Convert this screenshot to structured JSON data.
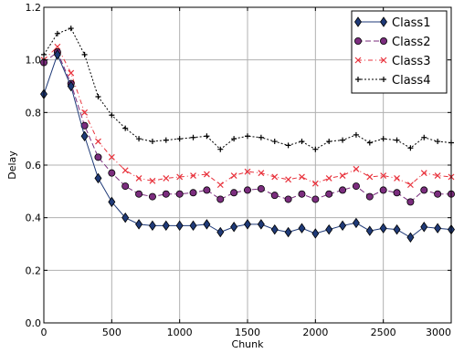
{
  "chart_data": {
    "type": "line",
    "xlabel": "Chunk",
    "ylabel": "Delay",
    "xlim": [
      0,
      3000
    ],
    "ylim": [
      0.0,
      1.2
    ],
    "x_ticks": [
      0,
      500,
      1000,
      1500,
      2000,
      2500,
      3000
    ],
    "y_ticks": [
      0.0,
      0.2,
      0.4,
      0.6,
      0.8,
      1.0,
      1.2
    ],
    "x_tick_labels": [
      "0",
      "500",
      "1000",
      "1500",
      "2000",
      "2500",
      "3000"
    ],
    "y_tick_labels": [
      "0.0",
      "0.2",
      "0.4",
      "0.6",
      "0.8",
      "1.0",
      "1.2"
    ],
    "grid": true,
    "legend_position": "top-right",
    "x": [
      0,
      100,
      200,
      300,
      400,
      500,
      600,
      700,
      800,
      900,
      1000,
      1100,
      1200,
      1300,
      1400,
      1500,
      1600,
      1700,
      1800,
      1900,
      2000,
      2100,
      2200,
      2300,
      2400,
      2500,
      2600,
      2700,
      2800,
      2900,
      3000
    ],
    "series": [
      {
        "name": "Class1",
        "color": "#1f3a78",
        "marker": "diamond",
        "line": "solid",
        "values": [
          0.87,
          1.02,
          0.9,
          0.71,
          0.55,
          0.46,
          0.4,
          0.375,
          0.37,
          0.37,
          0.37,
          0.37,
          0.375,
          0.345,
          0.365,
          0.375,
          0.375,
          0.355,
          0.345,
          0.36,
          0.34,
          0.355,
          0.37,
          0.38,
          0.35,
          0.36,
          0.355,
          0.325,
          0.365,
          0.36,
          0.355
        ]
      },
      {
        "name": "Class2",
        "color": "#7b2d7e",
        "marker": "circle",
        "line": "dashed",
        "values": [
          0.99,
          1.03,
          0.91,
          0.75,
          0.63,
          0.57,
          0.52,
          0.49,
          0.48,
          0.49,
          0.49,
          0.495,
          0.505,
          0.47,
          0.495,
          0.505,
          0.51,
          0.485,
          0.47,
          0.49,
          0.47,
          0.49,
          0.505,
          0.52,
          0.48,
          0.505,
          0.495,
          0.46,
          0.505,
          0.49,
          0.49
        ]
      },
      {
        "name": "Class3",
        "color": "#e8323c",
        "marker": "x",
        "line": "dashdot",
        "values": [
          1.0,
          1.05,
          0.95,
          0.8,
          0.69,
          0.63,
          0.58,
          0.55,
          0.54,
          0.55,
          0.555,
          0.56,
          0.565,
          0.525,
          0.56,
          0.575,
          0.57,
          0.555,
          0.545,
          0.555,
          0.53,
          0.55,
          0.56,
          0.585,
          0.555,
          0.56,
          0.55,
          0.525,
          0.57,
          0.56,
          0.555
        ]
      },
      {
        "name": "Class4",
        "color": "#000000",
        "marker": "plus",
        "line": "dotted",
        "values": [
          1.02,
          1.1,
          1.12,
          1.02,
          0.86,
          0.79,
          0.74,
          0.7,
          0.69,
          0.695,
          0.7,
          0.705,
          0.71,
          0.66,
          0.7,
          0.71,
          0.705,
          0.69,
          0.675,
          0.69,
          0.66,
          0.69,
          0.695,
          0.715,
          0.685,
          0.7,
          0.695,
          0.665,
          0.705,
          0.69,
          0.685
        ]
      }
    ]
  }
}
